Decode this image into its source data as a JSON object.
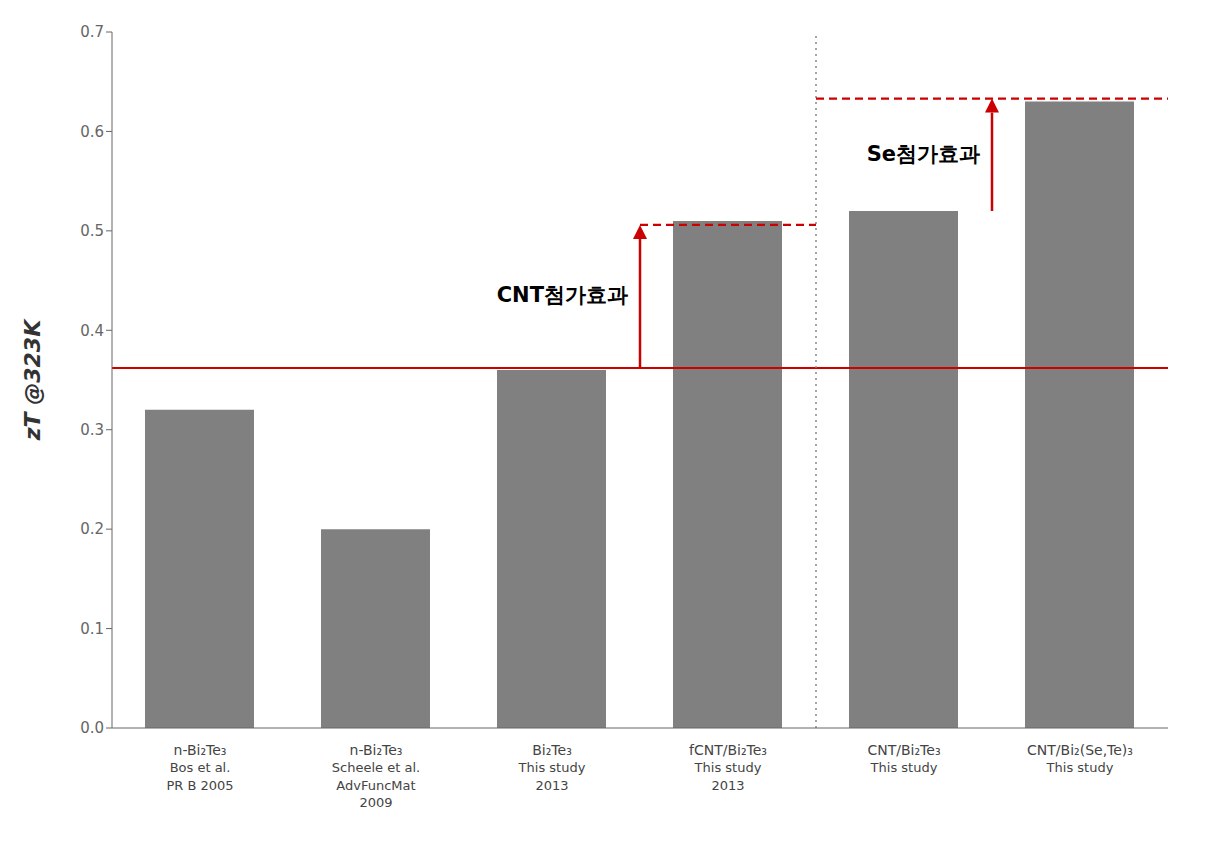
{
  "chart_data": {
    "type": "bar",
    "categories": [
      "n-Bi₂Te₃\nBos et al.\nPR B 2005",
      "n-Bi₂Te₃\nScheele et al.\nAdvFuncMat\n2009",
      "Bi₂Te₃\nThis study\n2013",
      "fCNT/Bi₂Te₃\nThis study\n2013",
      "CNT/Bi₂Te₃\nThis study",
      "CNT/Bi₂(Se,Te)₃\nThis study"
    ],
    "values": [
      0.32,
      0.2,
      0.36,
      0.51,
      0.52,
      0.63
    ],
    "color": "#808080",
    "y_label": "zT @323K",
    "ylim": [
      0.0,
      0.7
    ],
    "yticks": [
      {
        "value": 0.0,
        "label": "0.0"
      },
      0.1,
      0.2,
      0.3,
      0.4,
      0.5,
      0.6,
      0.7
    ],
    "grid": false,
    "reference_lines": [
      {
        "y": 0.362,
        "color": "#cc0000",
        "line_style": "solid"
      }
    ],
    "separators": [
      {
        "x": 3.5,
        "color": "#888888",
        "line_style": "dotted"
      }
    ],
    "segments": [
      {
        "x": [
          2.5,
          3.5
        ],
        "y": 0.506,
        "color": "#cc0000",
        "line_style": "dashed"
      },
      {
        "x": [
          3.5,
          5.5
        ],
        "y": 0.633,
        "color": "#cc0000",
        "line_style": "dashed"
      }
    ],
    "arrows": [
      {
        "x": 2.5,
        "y": [
          0.362,
          0.506
        ],
        "color": "#cc0000",
        "text": "CNT첨가효과"
      },
      {
        "x": 4.5,
        "y": [
          0.52,
          0.633
        ],
        "color": "#cc0000",
        "text": "Se첨가효과"
      }
    ]
  }
}
